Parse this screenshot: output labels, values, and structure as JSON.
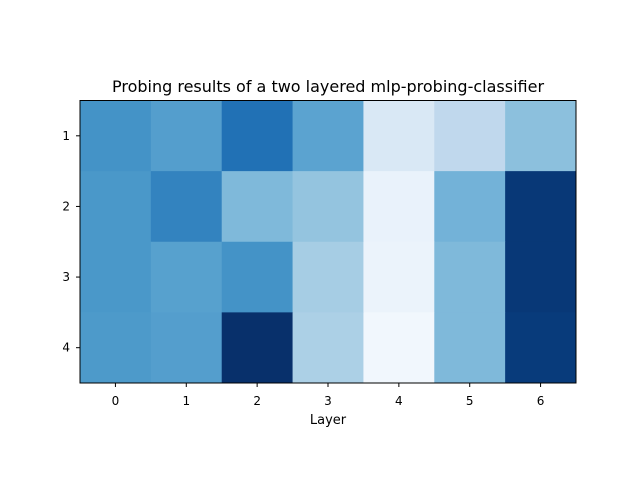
{
  "chart_data": {
    "type": "heatmap",
    "title": "Probing results of a two layered mlp-probing-classifier",
    "xlabel": "Layer",
    "ylabel": "",
    "x_categories": [
      "0",
      "1",
      "2",
      "3",
      "4",
      "5",
      "6"
    ],
    "y_categories": [
      "1",
      "2",
      "3",
      "4"
    ],
    "colormap": "Blues",
    "value_range": [
      0,
      1
    ],
    "values": [
      [
        0.62,
        0.57,
        0.75,
        0.55,
        0.15,
        0.27,
        0.42
      ],
      [
        0.6,
        0.68,
        0.45,
        0.4,
        0.07,
        0.48,
        0.97
      ],
      [
        0.6,
        0.56,
        0.62,
        0.35,
        0.06,
        0.45,
        0.97
      ],
      [
        0.59,
        0.57,
        1.0,
        0.33,
        0.03,
        0.45,
        0.96
      ]
    ],
    "grid": false,
    "colorbar": false
  }
}
